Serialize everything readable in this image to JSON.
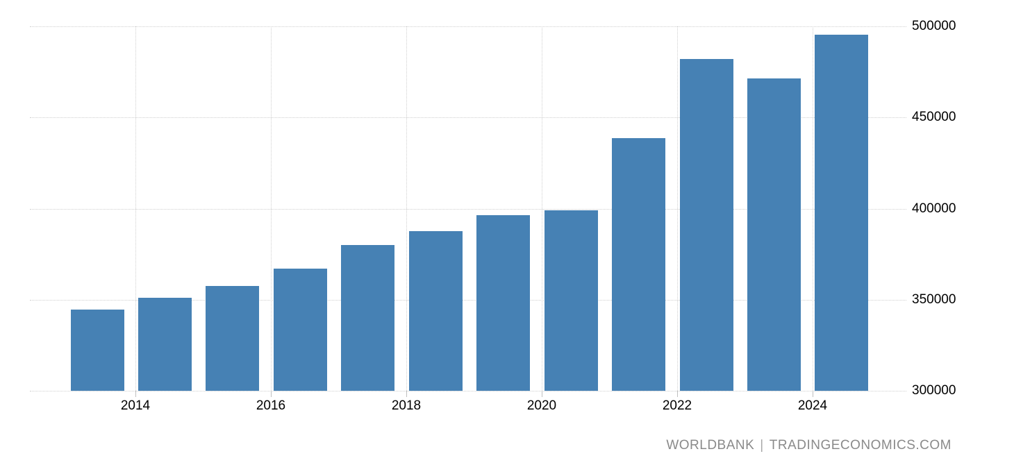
{
  "chart_data": {
    "type": "bar",
    "title": "",
    "xlabel": "",
    "ylabel": "",
    "categories": [
      "2013",
      "2014",
      "2015",
      "2016",
      "2017",
      "2018",
      "2019",
      "2020",
      "2021",
      "2022",
      "2023",
      "2024"
    ],
    "values": [
      344500,
      351000,
      357500,
      367000,
      380000,
      387500,
      396500,
      399000,
      438500,
      482000,
      471500,
      495500
    ],
    "ylim": [
      300000,
      500000
    ],
    "yticks": [
      300000,
      350000,
      400000,
      450000,
      500000
    ],
    "ytick_labels": [
      "300000",
      "350000",
      "400000",
      "450000",
      "500000"
    ],
    "xtick_years": [
      2014,
      2016,
      2018,
      2020,
      2022,
      2024
    ],
    "xtick_labels": [
      "2014",
      "2016",
      "2018",
      "2020",
      "2022",
      "2024"
    ],
    "grid": "dotted",
    "legend": "none",
    "bar_color": "#4681b4"
  },
  "colors": {
    "bar": "#4681b4",
    "gridline": "#cfcfcf",
    "tick": "#c0c0c0",
    "axis_text": "#000000",
    "attribution_text": "#8a8a8a",
    "background": "#ffffff"
  },
  "attribution": {
    "source": "WORLDBANK",
    "separator": "|",
    "site": "TRADINGECONOMICS.COM"
  }
}
